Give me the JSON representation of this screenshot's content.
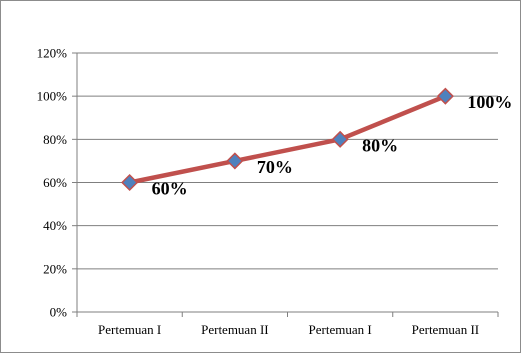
{
  "chart_data": {
    "type": "line",
    "categories": [
      "Pertemuan I",
      "Pertemuan II",
      "Pertemuan I",
      "Pertemuan II"
    ],
    "series": [
      {
        "values": [
          60,
          70,
          80,
          100
        ],
        "data_labels": [
          "60%",
          "70%",
          "80%",
          "100%"
        ]
      }
    ],
    "y_ticks": [
      0,
      20,
      40,
      60,
      80,
      100,
      120
    ],
    "y_tick_labels": [
      "0%",
      "20%",
      "40%",
      "60%",
      "80%",
      "100%",
      "120%"
    ],
    "ylim": [
      0,
      120
    ],
    "grid": true,
    "legend": "none",
    "colors": {
      "line": "#c0504d",
      "marker_fill": "#4f81bd",
      "marker_stroke": "#c0504d",
      "grid": "#7f7f7f",
      "axis": "#7f7f7f"
    }
  }
}
